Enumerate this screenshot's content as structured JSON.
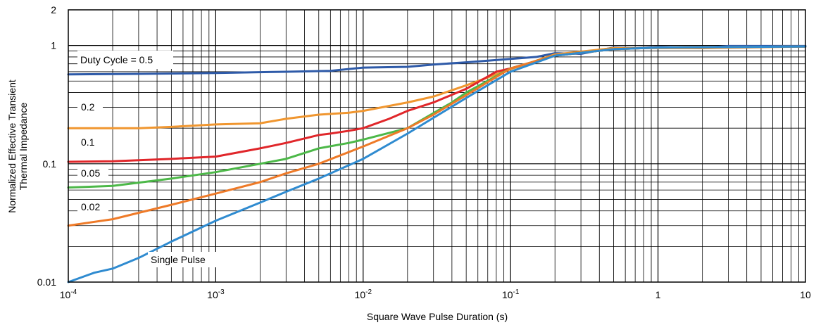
{
  "chart_data": {
    "type": "line",
    "title": "",
    "xlabel": "Square Wave Pulse Duration (s)",
    "ylabel_line1": "Normalized Effective Transient",
    "ylabel_line2": "Thermal Impedance",
    "x_scale": "log",
    "y_scale": "log",
    "xlim": [
      0.0001,
      10
    ],
    "ylim": [
      0.01,
      2
    ],
    "grid": true,
    "x_ticks": [
      {
        "base": "10",
        "exp": "-4"
      },
      {
        "base": "10",
        "exp": "-3"
      },
      {
        "base": "10",
        "exp": "-2"
      },
      {
        "base": "10",
        "exp": "-1"
      },
      {
        "base": "1",
        "exp": ""
      },
      {
        "base": "10",
        "exp": ""
      }
    ],
    "y_ticks": [
      "2",
      "1",
      "0.1",
      "0.01"
    ],
    "annotations": {
      "duty": "Duty Cycle = 0.5",
      "d02": "0.2",
      "d01": "0.1",
      "d005": "0.05",
      "d002": "0.02",
      "single": "Single Pulse"
    },
    "colors": {
      "d05": "#2e5aa8",
      "d02": "#f0962f",
      "d01": "#e0262a",
      "d005": "#4cb848",
      "d002": "#ee7a28",
      "single": "#2f8bd0",
      "grid": "#000000"
    },
    "series": [
      {
        "label_key": "duty",
        "color_key": "d05",
        "points": [
          [
            0.0001,
            0.57
          ],
          [
            0.0003,
            0.575
          ],
          [
            0.001,
            0.585
          ],
          [
            0.003,
            0.6
          ],
          [
            0.006,
            0.61
          ],
          [
            0.01,
            0.65
          ],
          [
            0.02,
            0.66
          ],
          [
            0.03,
            0.69
          ],
          [
            0.05,
            0.72
          ],
          [
            0.1,
            0.77
          ],
          [
            0.15,
            0.8
          ],
          [
            0.2,
            0.86
          ],
          [
            0.3,
            0.85
          ],
          [
            0.5,
            0.96
          ],
          [
            0.7,
            0.95
          ],
          [
            1,
            0.97
          ],
          [
            2,
            0.95
          ],
          [
            3,
            0.99
          ],
          [
            10,
            0.99
          ]
        ]
      },
      {
        "label_key": "d02",
        "color_key": "d02",
        "points": [
          [
            0.0001,
            0.2
          ],
          [
            0.0002,
            0.2
          ],
          [
            0.0003,
            0.2
          ],
          [
            0.0005,
            0.205
          ],
          [
            0.001,
            0.215
          ],
          [
            0.002,
            0.22
          ],
          [
            0.003,
            0.24
          ],
          [
            0.005,
            0.26
          ],
          [
            0.008,
            0.27
          ],
          [
            0.01,
            0.28
          ],
          [
            0.02,
            0.33
          ],
          [
            0.03,
            0.37
          ],
          [
            0.05,
            0.46
          ],
          [
            0.08,
            0.57
          ],
          [
            0.1,
            0.63
          ],
          [
            0.2,
            0.84
          ],
          [
            0.5,
            0.95
          ],
          [
            1,
            0.95
          ],
          [
            2,
            0.95
          ],
          [
            10,
            0.98
          ]
        ]
      },
      {
        "label_key": "d01",
        "color_key": "d01",
        "points": [
          [
            0.0001,
            0.104
          ],
          [
            0.0002,
            0.105
          ],
          [
            0.0005,
            0.11
          ],
          [
            0.001,
            0.115
          ],
          [
            0.002,
            0.135
          ],
          [
            0.003,
            0.15
          ],
          [
            0.005,
            0.175
          ],
          [
            0.006,
            0.18
          ],
          [
            0.008,
            0.19
          ],
          [
            0.01,
            0.2
          ],
          [
            0.015,
            0.24
          ],
          [
            0.02,
            0.28
          ],
          [
            0.03,
            0.33
          ],
          [
            0.05,
            0.43
          ],
          [
            0.08,
            0.6
          ],
          [
            0.1,
            0.64
          ],
          [
            0.2,
            0.82
          ],
          [
            0.5,
            0.93
          ],
          [
            1,
            0.96
          ],
          [
            10,
            0.98
          ]
        ]
      },
      {
        "label_key": "d005",
        "color_key": "d005",
        "points": [
          [
            0.0001,
            0.063
          ],
          [
            0.0002,
            0.065
          ],
          [
            0.0005,
            0.075
          ],
          [
            0.001,
            0.085
          ],
          [
            0.002,
            0.1
          ],
          [
            0.003,
            0.11
          ],
          [
            0.005,
            0.135
          ],
          [
            0.008,
            0.15
          ],
          [
            0.01,
            0.16
          ],
          [
            0.02,
            0.2
          ],
          [
            0.04,
            0.33
          ],
          [
            0.05,
            0.4
          ],
          [
            0.1,
            0.64
          ],
          [
            0.2,
            0.82
          ],
          [
            0.5,
            0.93
          ],
          [
            1,
            0.96
          ],
          [
            10,
            0.98
          ]
        ]
      },
      {
        "label_key": "d002",
        "color_key": "d002",
        "points": [
          [
            0.0001,
            0.03
          ],
          [
            0.0002,
            0.034
          ],
          [
            0.0005,
            0.045
          ],
          [
            0.001,
            0.056
          ],
          [
            0.002,
            0.07
          ],
          [
            0.003,
            0.083
          ],
          [
            0.005,
            0.1
          ],
          [
            0.01,
            0.14
          ],
          [
            0.02,
            0.2
          ],
          [
            0.03,
            0.26
          ],
          [
            0.05,
            0.38
          ],
          [
            0.1,
            0.64
          ],
          [
            0.2,
            0.82
          ],
          [
            0.5,
            0.93
          ],
          [
            1,
            0.96
          ],
          [
            10,
            0.98
          ]
        ]
      },
      {
        "label_key": "single",
        "color_key": "single",
        "points": [
          [
            0.0001,
            0.01
          ],
          [
            0.00015,
            0.012
          ],
          [
            0.0002,
            0.013
          ],
          [
            0.0003,
            0.016
          ],
          [
            0.0005,
            0.022
          ],
          [
            0.001,
            0.033
          ],
          [
            0.002,
            0.047
          ],
          [
            0.003,
            0.058
          ],
          [
            0.005,
            0.075
          ],
          [
            0.01,
            0.11
          ],
          [
            0.02,
            0.18
          ],
          [
            0.05,
            0.36
          ],
          [
            0.1,
            0.6
          ],
          [
            0.2,
            0.82
          ],
          [
            0.5,
            0.93
          ],
          [
            1,
            0.96
          ],
          [
            10,
            0.98
          ]
        ]
      }
    ]
  }
}
